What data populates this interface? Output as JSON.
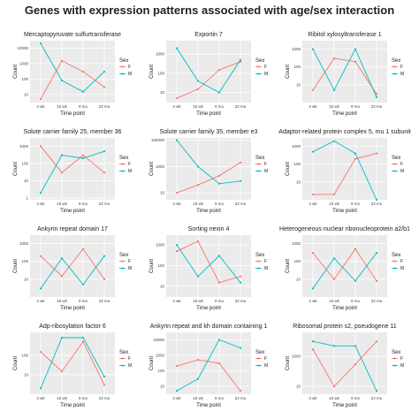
{
  "page_title": "Genes with expression patterns associated with age/sex interaction",
  "colors": {
    "F": "#F8766D",
    "M": "#00BFC4",
    "panel_bg": "#EBEBEB",
    "grid": "#FFFFFF"
  },
  "chart_data": [
    {
      "type": "line",
      "title": "Mercaptopyruvate sulfurtransferase",
      "categories": [
        "4 wk",
        "15 wk",
        "9 mo",
        "22 mo"
      ],
      "xlabel": "Time point",
      "ylabel": "Count",
      "yscale": "log",
      "yticks": [
        10,
        100,
        1000,
        10000
      ],
      "ylim": [
        3,
        30000
      ],
      "legend": {
        "title": "Sex",
        "entries": [
          "F",
          "M"
        ],
        "position": "right"
      },
      "series": [
        {
          "name": "F",
          "values": [
            5,
            1500,
            300,
            30
          ]
        },
        {
          "name": "M",
          "values": [
            20000,
            80,
            15,
            300
          ]
        }
      ]
    },
    {
      "type": "line",
      "title": "Exportin 7",
      "categories": [
        "4 wk",
        "15 wk",
        "9 mo",
        "22 mo"
      ],
      "xlabel": "Time point",
      "ylabel": "Count",
      "yscale": "log",
      "yticks": [
        10,
        100,
        1000
      ],
      "ylim": [
        3,
        5000
      ],
      "legend": {
        "title": "Sex",
        "entries": [
          "F",
          "M"
        ],
        "position": "right"
      },
      "series": [
        {
          "name": "F",
          "values": [
            5,
            15,
            150,
            400
          ]
        },
        {
          "name": "M",
          "values": [
            2000,
            40,
            10,
            500
          ]
        }
      ]
    },
    {
      "type": "line",
      "title": "Ribitol xylosyltransferase 1",
      "categories": [
        "4 wk",
        "15 wk",
        "9 mo",
        "22 mo"
      ],
      "xlabel": "Time point",
      "ylabel": "Count",
      "yscale": "log",
      "yticks": [
        10,
        100,
        1000
      ],
      "ylim": [
        1,
        3000
      ],
      "legend": {
        "title": "Sex",
        "entries": [
          "F",
          "M"
        ],
        "position": "right"
      },
      "series": [
        {
          "name": "F",
          "values": [
            5,
            300,
            200,
            3
          ]
        },
        {
          "name": "M",
          "values": [
            1000,
            5,
            1000,
            2
          ]
        }
      ]
    },
    {
      "type": "line",
      "title": "Solute carrier family 25, member 36",
      "categories": [
        "4 wk",
        "15 wk",
        "9 mo",
        "22 mo"
      ],
      "xlabel": "Time point",
      "ylabel": "Count",
      "yscale": "log",
      "yticks": [
        1,
        10,
        100,
        1000
      ],
      "ylim": [
        0.8,
        3000
      ],
      "legend": {
        "title": "Sex",
        "entries": [
          "F",
          "M"
        ],
        "position": "right"
      },
      "series": [
        {
          "name": "F",
          "values": [
            1000,
            30,
            300,
            30
          ]
        },
        {
          "name": "M",
          "values": [
            2,
            300,
            200,
            500
          ]
        }
      ]
    },
    {
      "type": "line",
      "title": "Solute carrier family 35, member e3",
      "categories": [
        "4 wk",
        "15 wk",
        "9 mo",
        "22 mo"
      ],
      "xlabel": "Time point",
      "ylabel": "Count",
      "yscale": "log",
      "yticks": [
        10,
        1000,
        100000
      ],
      "ylim": [
        3,
        150000
      ],
      "legend": {
        "title": "Sex",
        "entries": [
          "F",
          "M"
        ],
        "position": "right"
      },
      "series": [
        {
          "name": "F",
          "values": [
            10,
            40,
            200,
            2000
          ]
        },
        {
          "name": "M",
          "values": [
            100000,
            1000,
            50,
            80
          ]
        }
      ]
    },
    {
      "type": "line",
      "title": "Adaptor-related protein complex 5, mu 1 subunit",
      "categories": [
        "4 wk",
        "15 wk",
        "9 mo",
        "22 mo"
      ],
      "xlabel": "Time point",
      "ylabel": "Count",
      "yscale": "log",
      "yticks": [
        10,
        100,
        1000
      ],
      "ylim": [
        1,
        3000
      ],
      "legend": {
        "title": "Sex",
        "entries": [
          "F",
          "M"
        ],
        "position": "right"
      },
      "series": [
        {
          "name": "F",
          "values": [
            2,
            2,
            200,
            400
          ]
        },
        {
          "name": "M",
          "values": [
            500,
            2000,
            400,
            1
          ]
        }
      ]
    },
    {
      "type": "line",
      "title": "Ankyrin repeat domain 17",
      "categories": [
        "4 wk",
        "15 wk",
        "9 mo",
        "22 mo"
      ],
      "xlabel": "Time point",
      "ylabel": "Count",
      "yscale": "log",
      "yticks": [
        10,
        100,
        1000
      ],
      "ylim": [
        1,
        3000
      ],
      "legend": {
        "title": "Sex",
        "entries": [
          "F",
          "M"
        ],
        "position": "right"
      },
      "series": [
        {
          "name": "F",
          "values": [
            200,
            15,
            500,
            10
          ]
        },
        {
          "name": "M",
          "values": [
            3,
            150,
            5,
            200
          ]
        }
      ]
    },
    {
      "type": "line",
      "title": "Sorting nexin 4",
      "categories": [
        "4 wk",
        "15 wk",
        "9 mo",
        "22 mo"
      ],
      "xlabel": "Time point",
      "ylabel": "Count",
      "yscale": "log",
      "yticks": [
        10,
        100,
        1000
      ],
      "ylim": [
        3,
        3000
      ],
      "legend": {
        "title": "Sex",
        "entries": [
          "F",
          "M"
        ],
        "position": "right"
      },
      "series": [
        {
          "name": "F",
          "values": [
            500,
            1500,
            15,
            30
          ]
        },
        {
          "name": "M",
          "values": [
            1000,
            30,
            300,
            15
          ]
        }
      ]
    },
    {
      "type": "line",
      "title": "Heterogeneous nuclear ribonucleoprotein a2/b1",
      "categories": [
        "4 wk",
        "15 wk",
        "9 mo",
        "22 mo"
      ],
      "xlabel": "Time point",
      "ylabel": "Count",
      "yscale": "log",
      "yticks": [
        10,
        100,
        1000
      ],
      "ylim": [
        1,
        3000
      ],
      "legend": {
        "title": "Sex",
        "entries": [
          "F",
          "M"
        ],
        "position": "right"
      },
      "series": [
        {
          "name": "F",
          "values": [
            300,
            10,
            500,
            8
          ]
        },
        {
          "name": "M",
          "values": [
            3,
            150,
            8,
            300
          ]
        }
      ]
    },
    {
      "type": "line",
      "title": "Adp-ribosylation factor 6",
      "categories": [
        "4 wk",
        "15 wk",
        "9 mo",
        "22 mo"
      ],
      "xlabel": "Time point",
      "ylabel": "Count",
      "yscale": "log",
      "yticks": [
        10,
        100
      ],
      "ylim": [
        1,
        1500
      ],
      "legend": {
        "title": "Sex",
        "entries": [
          "F",
          "M"
        ],
        "position": "right"
      },
      "series": [
        {
          "name": "F",
          "values": [
            150,
            15,
            500,
            3
          ]
        },
        {
          "name": "M",
          "values": [
            2,
            800,
            800,
            8
          ]
        }
      ]
    },
    {
      "type": "line",
      "title": "Ankyrin repeat and kh domain containing 1",
      "categories": [
        "4 wk",
        "15 wk",
        "9 mo",
        "22 mo"
      ],
      "xlabel": "Time point",
      "ylabel": "Count",
      "yscale": "log",
      "yticks": [
        10,
        100,
        1000,
        10000
      ],
      "ylim": [
        3,
        30000
      ],
      "legend": {
        "title": "Sex",
        "entries": [
          "F",
          "M"
        ],
        "position": "right"
      },
      "series": [
        {
          "name": "F",
          "values": [
            200,
            500,
            300,
            5
          ]
        },
        {
          "name": "M",
          "values": [
            5,
            30,
            10000,
            3000
          ]
        }
      ]
    },
    {
      "type": "line",
      "title": "Ribosomal protein s2, pseudogene 11",
      "categories": [
        "4 wk",
        "15 wk",
        "9 mo",
        "22 mo"
      ],
      "xlabel": "Time point",
      "ylabel": "Count",
      "yscale": "log",
      "yticks": [
        10,
        1000
      ],
      "ylim": [
        3,
        40000
      ],
      "legend": {
        "title": "Sex",
        "entries": [
          "F",
          "M"
        ],
        "position": "right"
      },
      "series": [
        {
          "name": "F",
          "values": [
            3000,
            10,
            300,
            10000
          ]
        },
        {
          "name": "M",
          "values": [
            10000,
            5000,
            5000,
            5
          ]
        }
      ]
    }
  ]
}
